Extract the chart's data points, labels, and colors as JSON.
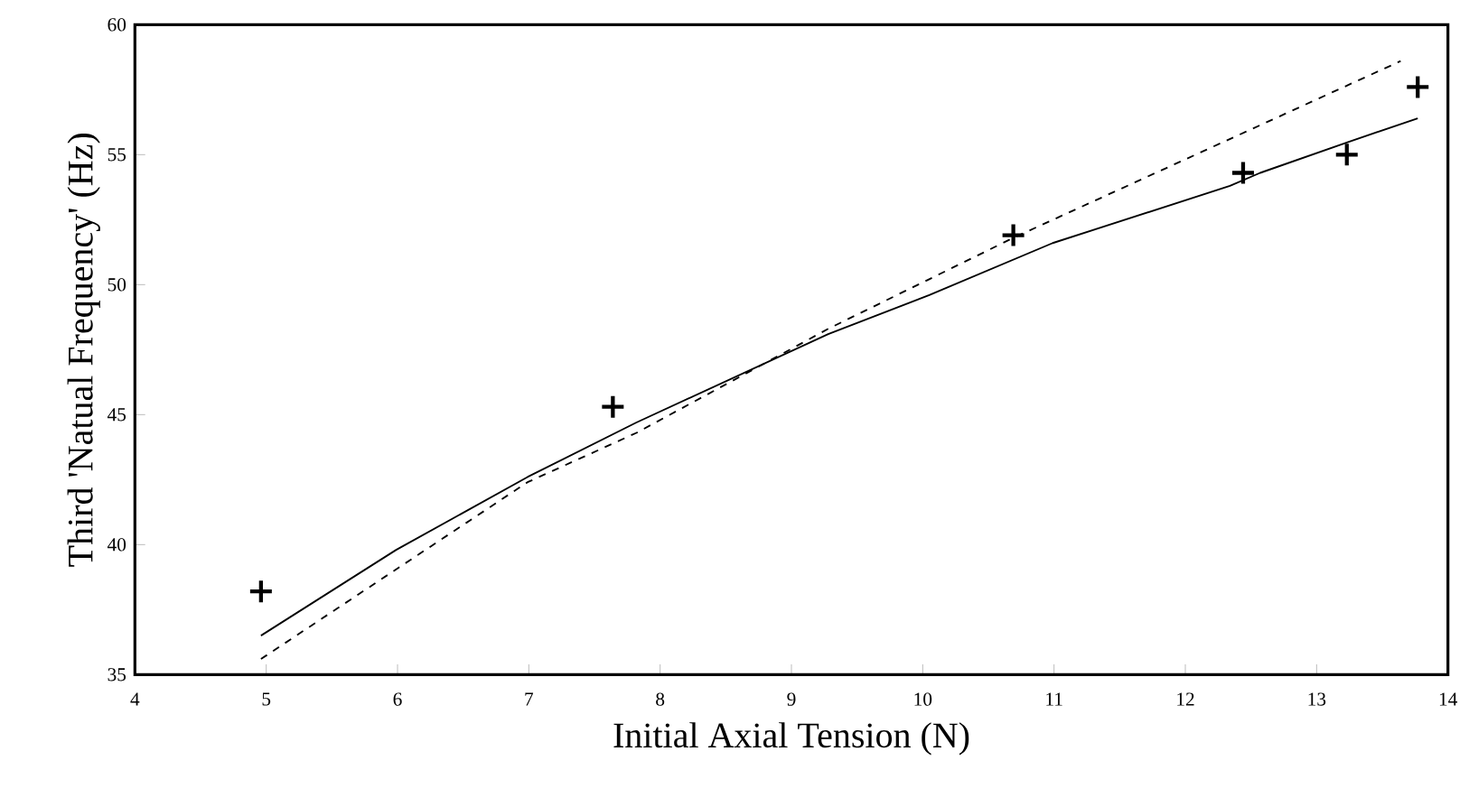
{
  "chart_data": {
    "type": "line",
    "xlabel": "Initial Axial Tension (N)",
    "ylabel": "Third  'Natual Frequency'  (Hz)",
    "xlim": [
      4,
      14
    ],
    "ylim": [
      35,
      60
    ],
    "xticks": [
      4,
      5,
      6,
      7,
      8,
      9,
      10,
      11,
      12,
      13,
      14
    ],
    "yticks": [
      35,
      40,
      45,
      50,
      55,
      60
    ],
    "grid": false,
    "legend": false,
    "series": [
      {
        "type": "scatter",
        "marker": "cross",
        "color": "#000000",
        "x": [
          4.96,
          7.64,
          10.69,
          12.44,
          13.23,
          13.77
        ],
        "values": [
          38.2,
          45.3,
          51.9,
          54.3,
          55.0,
          57.6
        ]
      },
      {
        "line_style": "solid",
        "marker": "none",
        "color": "#000000",
        "x": [
          4.96,
          5.99,
          6.99,
          7.82,
          9.28,
          10.05,
          10.99,
          12.34,
          12.57,
          13.25,
          13.77
        ],
        "values": [
          36.5,
          39.8,
          42.6,
          44.7,
          48.1,
          49.6,
          51.6,
          53.8,
          54.3,
          55.5,
          56.4
        ]
      },
      {
        "line_style": "dashed",
        "marker": "none",
        "color": "#000000",
        "x": [
          4.96,
          6.99,
          7.82,
          9.28,
          10.69,
          13.64
        ],
        "values": [
          35.6,
          42.4,
          44.3,
          48.3,
          51.8,
          58.6
        ]
      }
    ]
  }
}
